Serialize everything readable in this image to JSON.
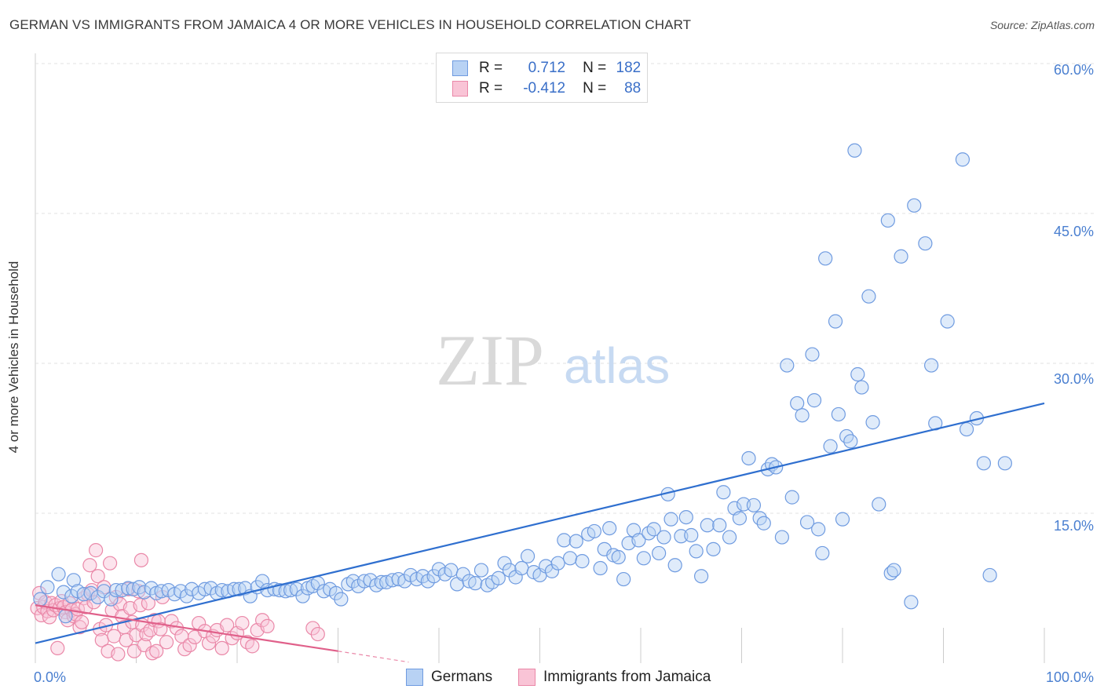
{
  "header": {
    "title": "GERMAN VS IMMIGRANTS FROM JAMAICA 4 OR MORE VEHICLES IN HOUSEHOLD CORRELATION CHART",
    "source": "Source: ZipAtlas.com"
  },
  "watermark": {
    "zip": "ZIP",
    "atlas": "atlas"
  },
  "legend": {
    "rows": [
      {
        "r_label": "R =",
        "r_value": "0.712",
        "n_label": "N =",
        "n_value": "182",
        "fill": "#b8d2f4",
        "stroke": "#6f9be0"
      },
      {
        "r_label": "R =",
        "r_value": "-0.412",
        "n_label": "N =",
        "n_value": "88",
        "fill": "#f9c4d6",
        "stroke": "#ea88a8"
      }
    ]
  },
  "bottom_legend": {
    "items": [
      {
        "label": "Germans",
        "fill": "#b8d2f4",
        "stroke": "#6f9be0"
      },
      {
        "label": "Immigrants from Jamaica",
        "fill": "#f9c4d6",
        "stroke": "#ea88a8"
      }
    ]
  },
  "chart_data": {
    "type": "scatter",
    "title": "GERMAN VS IMMIGRANTS FROM JAMAICA 4 OR MORE VEHICLES IN HOUSEHOLD CORRELATION CHART",
    "xlabel": "",
    "ylabel": "4 or more Vehicles in Household",
    "xlim": [
      0,
      100
    ],
    "ylim": [
      0,
      62
    ],
    "x_tick_labels": [
      "0.0%",
      "100.0%"
    ],
    "y_ticks": [
      15,
      30,
      45,
      60
    ],
    "y_tick_labels": [
      "15.0%",
      "30.0%",
      "45.0%",
      "60.0%"
    ],
    "grid": true,
    "legend_position": "top-center",
    "colors": {
      "germans": "#6f9be0",
      "germans_fill": "#b8d2f4",
      "germans_line": "#2f6fcf",
      "jamaica": "#ea88a8",
      "jamaica_fill": "#f9c4d6",
      "jamaica_line": "#e0608a"
    },
    "series": [
      {
        "name": "Germans",
        "trend": {
          "x": [
            0,
            100
          ],
          "y": [
            2.0,
            26.0
          ]
        },
        "points": [
          [
            0.5,
            6.4
          ],
          [
            1.2,
            7.6
          ],
          [
            2.3,
            8.9
          ],
          [
            2.8,
            7.1
          ],
          [
            3.0,
            4.7
          ],
          [
            3.6,
            6.7
          ],
          [
            3.8,
            8.3
          ],
          [
            4.2,
            7.2
          ],
          [
            4.8,
            6.9
          ],
          [
            5.5,
            7.0
          ],
          [
            6.2,
            6.6
          ],
          [
            6.8,
            7.2
          ],
          [
            7.5,
            6.4
          ],
          [
            8.0,
            7.3
          ],
          [
            8.6,
            7.3
          ],
          [
            9.2,
            7.5
          ],
          [
            9.7,
            7.4
          ],
          [
            10.3,
            7.6
          ],
          [
            10.8,
            7.1
          ],
          [
            11.5,
            7.5
          ],
          [
            12.0,
            7.0
          ],
          [
            12.5,
            7.2
          ],
          [
            13.2,
            7.3
          ],
          [
            13.8,
            6.9
          ],
          [
            14.4,
            7.2
          ],
          [
            15.0,
            6.7
          ],
          [
            15.5,
            7.4
          ],
          [
            16.2,
            7.0
          ],
          [
            16.8,
            7.4
          ],
          [
            17.4,
            7.5
          ],
          [
            18.0,
            7.0
          ],
          [
            18.5,
            7.3
          ],
          [
            19.1,
            7.2
          ],
          [
            19.7,
            7.4
          ],
          [
            20.2,
            7.4
          ],
          [
            20.8,
            7.5
          ],
          [
            21.3,
            6.7
          ],
          [
            22.0,
            7.6
          ],
          [
            22.5,
            8.2
          ],
          [
            23.0,
            7.3
          ],
          [
            23.7,
            7.4
          ],
          [
            24.2,
            7.3
          ],
          [
            24.8,
            7.2
          ],
          [
            25.3,
            7.3
          ],
          [
            25.9,
            7.4
          ],
          [
            26.5,
            6.7
          ],
          [
            27.0,
            7.5
          ],
          [
            27.5,
            7.7
          ],
          [
            28.0,
            8.0
          ],
          [
            28.6,
            7.2
          ],
          [
            29.2,
            7.4
          ],
          [
            29.8,
            7.0
          ],
          [
            30.3,
            6.4
          ],
          [
            31.0,
            7.9
          ],
          [
            31.5,
            8.2
          ],
          [
            32.0,
            7.7
          ],
          [
            32.6,
            8.2
          ],
          [
            33.2,
            8.3
          ],
          [
            33.8,
            7.8
          ],
          [
            34.3,
            8.1
          ],
          [
            34.8,
            8.1
          ],
          [
            35.4,
            8.3
          ],
          [
            36.0,
            8.4
          ],
          [
            36.6,
            8.2
          ],
          [
            37.2,
            8.8
          ],
          [
            37.8,
            8.4
          ],
          [
            38.4,
            8.7
          ],
          [
            38.9,
            8.2
          ],
          [
            39.5,
            8.7
          ],
          [
            40.0,
            9.4
          ],
          [
            40.6,
            8.9
          ],
          [
            41.2,
            9.3
          ],
          [
            41.8,
            7.9
          ],
          [
            42.4,
            8.9
          ],
          [
            43.0,
            8.2
          ],
          [
            43.6,
            8.0
          ],
          [
            44.2,
            9.3
          ],
          [
            44.8,
            7.8
          ],
          [
            45.3,
            8.1
          ],
          [
            45.9,
            8.5
          ],
          [
            46.5,
            10.0
          ],
          [
            47.0,
            9.3
          ],
          [
            47.6,
            8.6
          ],
          [
            48.2,
            9.5
          ],
          [
            48.8,
            10.7
          ],
          [
            49.4,
            9.1
          ],
          [
            50.0,
            8.8
          ],
          [
            50.6,
            9.7
          ],
          [
            51.2,
            9.2
          ],
          [
            51.8,
            10.0
          ],
          [
            52.4,
            12.3
          ],
          [
            53.0,
            10.5
          ],
          [
            53.6,
            12.2
          ],
          [
            54.2,
            10.2
          ],
          [
            54.8,
            12.9
          ],
          [
            55.4,
            13.2
          ],
          [
            56.0,
            9.5
          ],
          [
            56.4,
            11.4
          ],
          [
            56.9,
            13.5
          ],
          [
            57.3,
            10.8
          ],
          [
            57.8,
            10.6
          ],
          [
            58.3,
            8.4
          ],
          [
            58.8,
            12.0
          ],
          [
            59.3,
            13.3
          ],
          [
            59.8,
            12.3
          ],
          [
            60.3,
            10.5
          ],
          [
            60.8,
            13.0
          ],
          [
            61.3,
            13.4
          ],
          [
            61.8,
            11.0
          ],
          [
            62.3,
            12.6
          ],
          [
            62.7,
            16.9
          ],
          [
            63.0,
            14.4
          ],
          [
            63.4,
            9.8
          ],
          [
            64.0,
            12.7
          ],
          [
            64.5,
            14.6
          ],
          [
            65.0,
            12.8
          ],
          [
            65.5,
            11.2
          ],
          [
            66.0,
            8.7
          ],
          [
            66.6,
            13.8
          ],
          [
            67.2,
            11.4
          ],
          [
            67.8,
            13.8
          ],
          [
            68.2,
            17.1
          ],
          [
            68.8,
            12.6
          ],
          [
            69.3,
            15.5
          ],
          [
            69.8,
            14.5
          ],
          [
            70.2,
            15.9
          ],
          [
            70.7,
            20.5
          ],
          [
            71.2,
            15.8
          ],
          [
            71.8,
            14.5
          ],
          [
            72.2,
            14.0
          ],
          [
            72.6,
            19.4
          ],
          [
            73.0,
            19.9
          ],
          [
            73.4,
            19.6
          ],
          [
            74.0,
            12.6
          ],
          [
            74.5,
            29.8
          ],
          [
            75.0,
            16.6
          ],
          [
            75.5,
            26.0
          ],
          [
            76.0,
            24.8
          ],
          [
            76.5,
            14.1
          ],
          [
            77.0,
            30.9
          ],
          [
            77.2,
            26.3
          ],
          [
            77.6,
            13.4
          ],
          [
            78.0,
            11.0
          ],
          [
            78.3,
            40.5
          ],
          [
            78.8,
            21.7
          ],
          [
            79.3,
            34.2
          ],
          [
            79.6,
            24.9
          ],
          [
            80.0,
            14.4
          ],
          [
            80.4,
            22.7
          ],
          [
            80.8,
            22.2
          ],
          [
            81.2,
            51.3
          ],
          [
            81.5,
            28.9
          ],
          [
            81.9,
            27.6
          ],
          [
            82.6,
            36.7
          ],
          [
            83.0,
            24.1
          ],
          [
            83.6,
            15.9
          ],
          [
            84.5,
            44.3
          ],
          [
            84.8,
            9.0
          ],
          [
            85.1,
            9.3
          ],
          [
            85.8,
            40.7
          ],
          [
            86.8,
            6.1
          ],
          [
            87.1,
            45.8
          ],
          [
            88.2,
            42.0
          ],
          [
            88.8,
            29.8
          ],
          [
            89.2,
            24.0
          ],
          [
            90.4,
            34.2
          ],
          [
            91.9,
            50.4
          ],
          [
            92.3,
            23.4
          ],
          [
            93.3,
            24.5
          ],
          [
            94.0,
            20.0
          ],
          [
            94.6,
            8.8
          ],
          [
            96.1,
            20.0
          ]
        ]
      },
      {
        "name": "Immigrants from Jamaica",
        "trend": {
          "x": [
            0,
            30
          ],
          "y": [
            5.8,
            1.2
          ]
        },
        "trend_dashed": {
          "x": [
            30,
            37
          ],
          "y": [
            1.2,
            0.1
          ]
        },
        "points": [
          [
            0.2,
            5.5
          ],
          [
            0.4,
            7.0
          ],
          [
            0.6,
            4.8
          ],
          [
            0.8,
            5.6
          ],
          [
            1.0,
            6.1
          ],
          [
            1.2,
            5.2
          ],
          [
            1.4,
            4.6
          ],
          [
            1.6,
            6.0
          ],
          [
            1.8,
            5.3
          ],
          [
            2.0,
            5.8
          ],
          [
            2.2,
            1.5
          ],
          [
            2.4,
            5.5
          ],
          [
            2.6,
            6.2
          ],
          [
            2.8,
            5.6
          ],
          [
            3.0,
            5.1
          ],
          [
            3.2,
            4.3
          ],
          [
            3.4,
            6.0
          ],
          [
            3.6,
            5.3
          ],
          [
            3.8,
            4.7
          ],
          [
            4.0,
            4.9
          ],
          [
            4.2,
            5.4
          ],
          [
            4.4,
            3.6
          ],
          [
            4.6,
            4.1
          ],
          [
            4.8,
            6.5
          ],
          [
            5.0,
            5.6
          ],
          [
            5.2,
            6.9
          ],
          [
            5.4,
            9.8
          ],
          [
            5.6,
            7.3
          ],
          [
            5.8,
            6.1
          ],
          [
            6.0,
            11.3
          ],
          [
            6.2,
            8.7
          ],
          [
            6.4,
            3.4
          ],
          [
            6.6,
            2.3
          ],
          [
            6.8,
            7.6
          ],
          [
            7.0,
            3.8
          ],
          [
            7.2,
            1.2
          ],
          [
            7.4,
            10.0
          ],
          [
            7.6,
            5.3
          ],
          [
            7.8,
            2.7
          ],
          [
            8.0,
            6.6
          ],
          [
            8.2,
            0.9
          ],
          [
            8.4,
            5.9
          ],
          [
            8.6,
            4.7
          ],
          [
            8.8,
            3.6
          ],
          [
            9.0,
            2.3
          ],
          [
            9.2,
            7.4
          ],
          [
            9.4,
            5.5
          ],
          [
            9.6,
            4.1
          ],
          [
            9.8,
            1.2
          ],
          [
            10.0,
            2.8
          ],
          [
            10.2,
            7.2
          ],
          [
            10.4,
            5.8
          ],
          [
            10.6,
            3.8
          ],
          [
            10.8,
            1.8
          ],
          [
            11.0,
            2.9
          ],
          [
            11.2,
            6.0
          ],
          [
            11.4,
            3.3
          ],
          [
            11.6,
            1.0
          ],
          [
            11.8,
            4.3
          ],
          [
            12.0,
            1.2
          ],
          [
            12.2,
            4.2
          ],
          [
            12.4,
            3.4
          ],
          [
            12.6,
            6.6
          ],
          [
            10.5,
            10.3
          ],
          [
            13.0,
            2.1
          ],
          [
            13.5,
            4.2
          ],
          [
            14.0,
            3.5
          ],
          [
            14.5,
            2.7
          ],
          [
            14.8,
            1.4
          ],
          [
            15.3,
            1.8
          ],
          [
            15.8,
            2.6
          ],
          [
            16.2,
            4.0
          ],
          [
            16.8,
            3.2
          ],
          [
            17.2,
            2.0
          ],
          [
            17.6,
            2.7
          ],
          [
            18.0,
            3.3
          ],
          [
            18.5,
            1.5
          ],
          [
            19.0,
            3.8
          ],
          [
            19.5,
            2.5
          ],
          [
            20.0,
            3.0
          ],
          [
            20.5,
            4.0
          ],
          [
            21.0,
            2.1
          ],
          [
            21.5,
            1.7
          ],
          [
            22.0,
            3.3
          ],
          [
            22.5,
            4.3
          ],
          [
            23.0,
            3.7
          ],
          [
            27.5,
            3.5
          ],
          [
            28.0,
            2.9
          ]
        ]
      }
    ]
  }
}
